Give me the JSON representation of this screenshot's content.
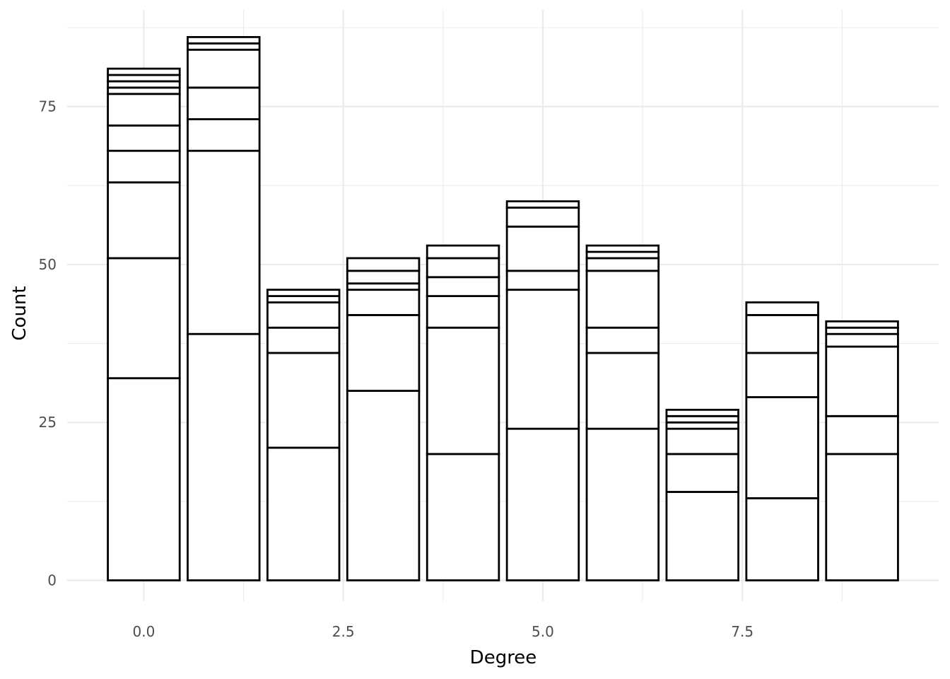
{
  "chart_data": {
    "type": "bar",
    "stacked": true,
    "xlabel": "Degree",
    "ylabel": "Count",
    "xlim": [
      -0.96,
      9.96
    ],
    "ylim": [
      -3.3,
      90.3
    ],
    "x_ticks": [
      0.0,
      2.5,
      5.0,
      7.5
    ],
    "x_tick_labels": [
      "0.0",
      "2.5",
      "5.0",
      "7.5"
    ],
    "y_ticks": [
      0,
      25,
      50,
      75
    ],
    "y_tick_labels": [
      "0",
      "25",
      "50",
      "75"
    ],
    "grid": true,
    "fill_color": "#ffffff",
    "outline_color": "#000000",
    "grid_color": "#ebebeb",
    "categories": [
      0,
      1,
      2,
      3,
      4,
      5,
      6,
      7,
      8,
      9
    ],
    "stacks": [
      [
        32,
        19,
        12,
        5,
        4,
        5,
        1,
        1,
        1,
        1
      ],
      [
        39,
        29,
        5,
        5,
        6,
        1,
        1,
        0
      ],
      [
        21,
        15,
        4,
        4,
        1,
        1
      ],
      [
        30,
        12,
        4,
        1,
        2,
        2
      ],
      [
        20,
        20,
        5,
        3,
        3,
        2
      ],
      [
        24,
        22,
        3,
        7,
        3,
        1
      ],
      [
        24,
        12,
        4,
        9,
        2,
        1,
        1
      ],
      [
        14,
        6,
        4,
        1,
        1,
        1
      ],
      [
        13,
        16,
        7,
        6,
        2
      ],
      [
        20,
        6,
        11,
        2,
        1,
        1
      ]
    ],
    "totals": [
      81,
      86,
      46,
      51,
      53,
      60,
      53,
      27,
      44,
      41
    ]
  }
}
